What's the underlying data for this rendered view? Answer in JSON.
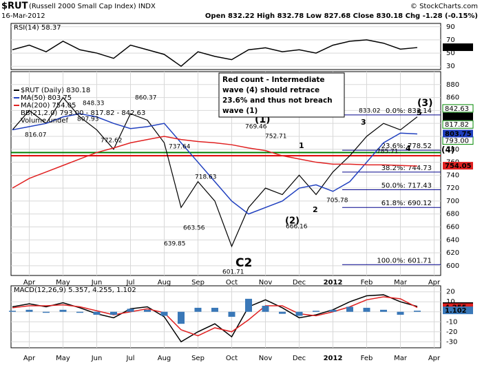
{
  "header": {
    "symbol": "$RUT",
    "name": "(Russell 2000 Small Cap Index) INDX",
    "date": "16-Mar-2012",
    "quote": "Open 832.22  High 832.78  Low 827.68  Close 830.18  Chg -1.28 (-0.15%)",
    "credit": "© StockCharts.com"
  },
  "chart_data": [
    {
      "type": "line",
      "title": "RSI(14) 58.37",
      "ylim": [
        25,
        95
      ],
      "yticks": [
        90,
        70,
        50,
        30
      ],
      "grid": true,
      "series": [
        {
          "name": "RSI(14)",
          "color": "#000000",
          "values": [
            55,
            62,
            52,
            68,
            55,
            50,
            42,
            62,
            55,
            48,
            30,
            52,
            45,
            40,
            55,
            58,
            52,
            55,
            50,
            62,
            68,
            70,
            65,
            56,
            58.37,
            null
          ]
        }
      ]
    },
    {
      "type": "line",
      "title": "$RUT (Daily) 830.18",
      "ylim": [
        585,
        900
      ],
      "yticks": [
        600,
        620,
        640,
        660,
        680,
        700,
        720,
        740,
        760,
        780,
        800,
        820,
        840,
        860,
        880
      ],
      "grid": true,
      "categories": [
        null,
        "Apr",
        null,
        "May",
        null,
        "Jun",
        null,
        "Jul",
        null,
        "Aug",
        null,
        "Sep",
        null,
        "Oct",
        null,
        "Nov",
        null,
        "Dec",
        null,
        "2012",
        null,
        "Feb",
        null,
        "Mar",
        null,
        "Apr"
      ],
      "series": [
        {
          "name": "$RUT (Daily) 830.18",
          "color": "#000000",
          "values": [
            810,
            840,
            820,
            860,
            830,
            810,
            780,
            835,
            825,
            790,
            690,
            730,
            700,
            630,
            690,
            720,
            710,
            740,
            710,
            745,
            770,
            800,
            820,
            810,
            830.18,
            null
          ]
        },
        {
          "name": "MA(50) 803.75",
          "color": "#1f3fbf",
          "values": [
            810,
            815,
            820,
            830,
            835,
            830,
            820,
            812,
            815,
            820,
            790,
            760,
            730,
            700,
            680,
            690,
            700,
            720,
            725,
            715,
            730,
            760,
            790,
            805,
            803.75,
            null
          ]
        },
        {
          "name": "MA(200) 754.05",
          "color": "#e02020",
          "values": [
            720,
            735,
            745,
            755,
            765,
            775,
            782,
            790,
            795,
            800,
            795,
            792,
            790,
            787,
            782,
            778,
            770,
            765,
            760,
            757,
            757,
            756,
            756,
            755,
            754.05,
            null
          ]
        }
      ],
      "bollinger": "BB(21,2.0) 793.00 - 817.82 - 842.63",
      "volume": "Volume undef",
      "bb_latest": [
        {
          "value": 842.63,
          "label": "842.63"
        },
        {
          "value": 817.82,
          "label": "817.82"
        },
        {
          "value": 793,
          "label": "793.00"
        }
      ],
      "hlines": [
        {
          "value": 775,
          "color": "#008000"
        },
        {
          "value": 770,
          "color": "#e00000"
        }
      ],
      "fib_levels": [
        {
          "value": 833.14,
          "label": "0.0%: 833.14"
        },
        {
          "value": 778.52,
          "label": "23.6%: 778.52"
        },
        {
          "value": 744.73,
          "label": "38.2%: 744.73"
        },
        {
          "value": 717.43,
          "label": "50.0%: 717.43"
        },
        {
          "value": 690.12,
          "label": "61.8%: 690.12"
        },
        {
          "value": 601.71,
          "label": "100.0%: 601.71"
        }
      ],
      "annotations": [
        "860.37",
        "848.33",
        "816.07",
        "807.93",
        "772.62",
        "737.64",
        "718.63",
        "663.56",
        "639.85",
        "601.71",
        "769.46",
        "752.71",
        "705.78",
        "666.16",
        "833.02",
        "785.71"
      ],
      "wave_labels": [
        "(1)",
        "(2)",
        "(3)",
        "C2",
        "1",
        "2",
        "3",
        "4",
        "5",
        "(4)"
      ],
      "note": [
        "Red count - Intermediate",
        "wave (4) should retrace",
        "23.6% and thus not breach",
        "wave (1)"
      ]
    },
    {
      "type": "line",
      "title": "MACD(12,26,9) 5.357, 4.255, 1.102",
      "ylim": [
        -36,
        26
      ],
      "yticks": [
        20,
        10,
        0,
        -10,
        -20,
        -30
      ],
      "grid": true,
      "categories": [
        null,
        "Apr",
        null,
        "May",
        null,
        "Jun",
        null,
        "Jul",
        null,
        "Aug",
        null,
        "Sep",
        null,
        "Oct",
        null,
        "Nov",
        null,
        "Dec",
        null,
        "2012",
        null,
        "Feb",
        null,
        "Mar",
        null,
        "Apr"
      ],
      "series": [
        {
          "name": "MACD",
          "color": "#000000",
          "values": [
            5,
            8,
            5,
            9,
            4,
            -2,
            -6,
            3,
            5,
            -5,
            -30,
            -20,
            -12,
            -25,
            5,
            12,
            4,
            -6,
            -3,
            2,
            10,
            16,
            17,
            10,
            5.357,
            null
          ]
        },
        {
          "name": "Signal",
          "color": "#e02020",
          "values": [
            4,
            6,
            6,
            7,
            5,
            1,
            -3,
            0,
            3,
            -1,
            -18,
            -24,
            -16,
            -20,
            -8,
            6,
            6,
            -2,
            -4,
            0,
            5,
            12,
            15,
            13,
            4.255,
            null
          ]
        },
        {
          "name": "Histogram",
          "color": "#3a78b8",
          "bars": true,
          "values": [
            1,
            2,
            -1,
            2,
            -1,
            -3,
            -3,
            3,
            2,
            -4,
            -12,
            4,
            4,
            -5,
            13,
            6,
            -2,
            -4,
            1,
            2,
            5,
            4,
            2,
            -3,
            1.102,
            null
          ]
        }
      ]
    }
  ]
}
